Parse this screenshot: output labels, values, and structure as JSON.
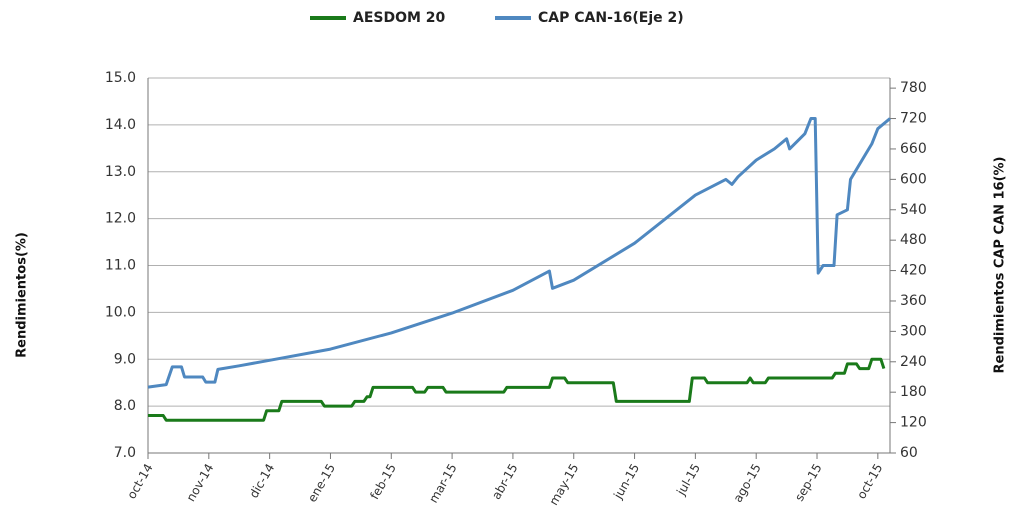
{
  "chart_data": {
    "type": "line",
    "y_label": "Rendimientos(%)",
    "y2_label": "Rendimientos CAP CAN 16(%)",
    "xlim": [
      0,
      12.2
    ],
    "xticks": [
      {
        "value": 0,
        "label": "oct-14"
      },
      {
        "value": 1,
        "label": "nov-14"
      },
      {
        "value": 2,
        "label": "dic-14"
      },
      {
        "value": 3,
        "label": "ene-15"
      },
      {
        "value": 4,
        "label": "feb-15"
      },
      {
        "value": 5,
        "label": "mar-15"
      },
      {
        "value": 6,
        "label": "abr-15"
      },
      {
        "value": 7,
        "label": "may-15"
      },
      {
        "value": 8,
        "label": "jun-15"
      },
      {
        "value": 9,
        "label": "jul-15"
      },
      {
        "value": 10,
        "label": "ago-15"
      },
      {
        "value": 11,
        "label": "sep-15"
      },
      {
        "value": 12,
        "label": "oct-15"
      }
    ],
    "ylim": [
      7,
      15
    ],
    "yticks": [
      {
        "value": 7,
        "label": "7.0"
      },
      {
        "value": 8,
        "label": "8.0"
      },
      {
        "value": 9,
        "label": "9.0"
      },
      {
        "value": 10,
        "label": "10.0"
      },
      {
        "value": 11,
        "label": "11.0"
      },
      {
        "value": 12,
        "label": "12.0"
      },
      {
        "value": 13,
        "label": "13.0"
      },
      {
        "value": 14,
        "label": "14.0"
      },
      {
        "value": 15,
        "label": "15.0"
      }
    ],
    "y2lim": [
      60,
      800
    ],
    "y2ticks": [
      60,
      120,
      180,
      240,
      300,
      360,
      420,
      480,
      540,
      600,
      660,
      720,
      780
    ],
    "grid": true,
    "legend": "top",
    "series": [
      {
        "name": "AESDOM 20",
        "color": "#1a7a1a",
        "x": [
          0,
          0.25,
          0.3,
          1.9,
          1.95,
          2.15,
          2.2,
          2.85,
          2.9,
          3.35,
          3.4,
          3.55,
          3.6,
          3.65,
          3.7,
          4.35,
          4.4,
          4.55,
          4.6,
          4.85,
          4.9,
          5.85,
          5.9,
          6.6,
          6.65,
          6.85,
          6.9,
          7.65,
          7.7,
          8.9,
          8.95,
          9.15,
          9.2,
          9.85,
          9.9,
          9.95,
          10.0,
          10.15,
          10.2,
          11.25,
          11.3,
          11.45,
          11.5,
          11.65,
          11.7,
          11.85,
          11.9,
          12.05,
          12.1
        ],
        "values": [
          7.8,
          7.8,
          7.7,
          7.7,
          7.9,
          7.9,
          8.1,
          8.1,
          8.0,
          8.0,
          8.1,
          8.1,
          8.2,
          8.2,
          8.4,
          8.4,
          8.3,
          8.3,
          8.4,
          8.4,
          8.3,
          8.3,
          8.4,
          8.4,
          8.6,
          8.6,
          8.5,
          8.5,
          8.1,
          8.1,
          8.6,
          8.6,
          8.5,
          8.5,
          8.6,
          8.5,
          8.5,
          8.5,
          8.6,
          8.6,
          8.7,
          8.7,
          8.9,
          8.9,
          8.8,
          8.8,
          9.0,
          9.0,
          8.8
        ]
      },
      {
        "name": "CAP CAN-16(Eje 2)",
        "color": "#4f88c0",
        "axis": "y2",
        "x": [
          0,
          0.3,
          0.4,
          0.55,
          0.6,
          0.9,
          0.95,
          1.1,
          1.15,
          1.5,
          2,
          3,
          4,
          5,
          6,
          6.6,
          6.65,
          7,
          8,
          9,
          9.5,
          9.6,
          9.7,
          10,
          10.3,
          10.5,
          10.55,
          10.8,
          10.9,
          10.97,
          11.02,
          11.1,
          11.28,
          11.33,
          11.5,
          11.55,
          11.8,
          11.9,
          12.0,
          12.2
        ],
        "values": [
          190,
          195,
          230,
          230,
          210,
          210,
          200,
          200,
          225,
          232,
          243,
          265,
          297,
          336,
          381,
          419,
          385,
          401,
          474,
          569,
          600,
          590,
          605,
          638,
          660,
          680,
          660,
          690,
          720,
          720,
          415,
          430,
          430,
          530,
          540,
          600,
          650,
          670,
          700,
          720
        ]
      }
    ]
  }
}
